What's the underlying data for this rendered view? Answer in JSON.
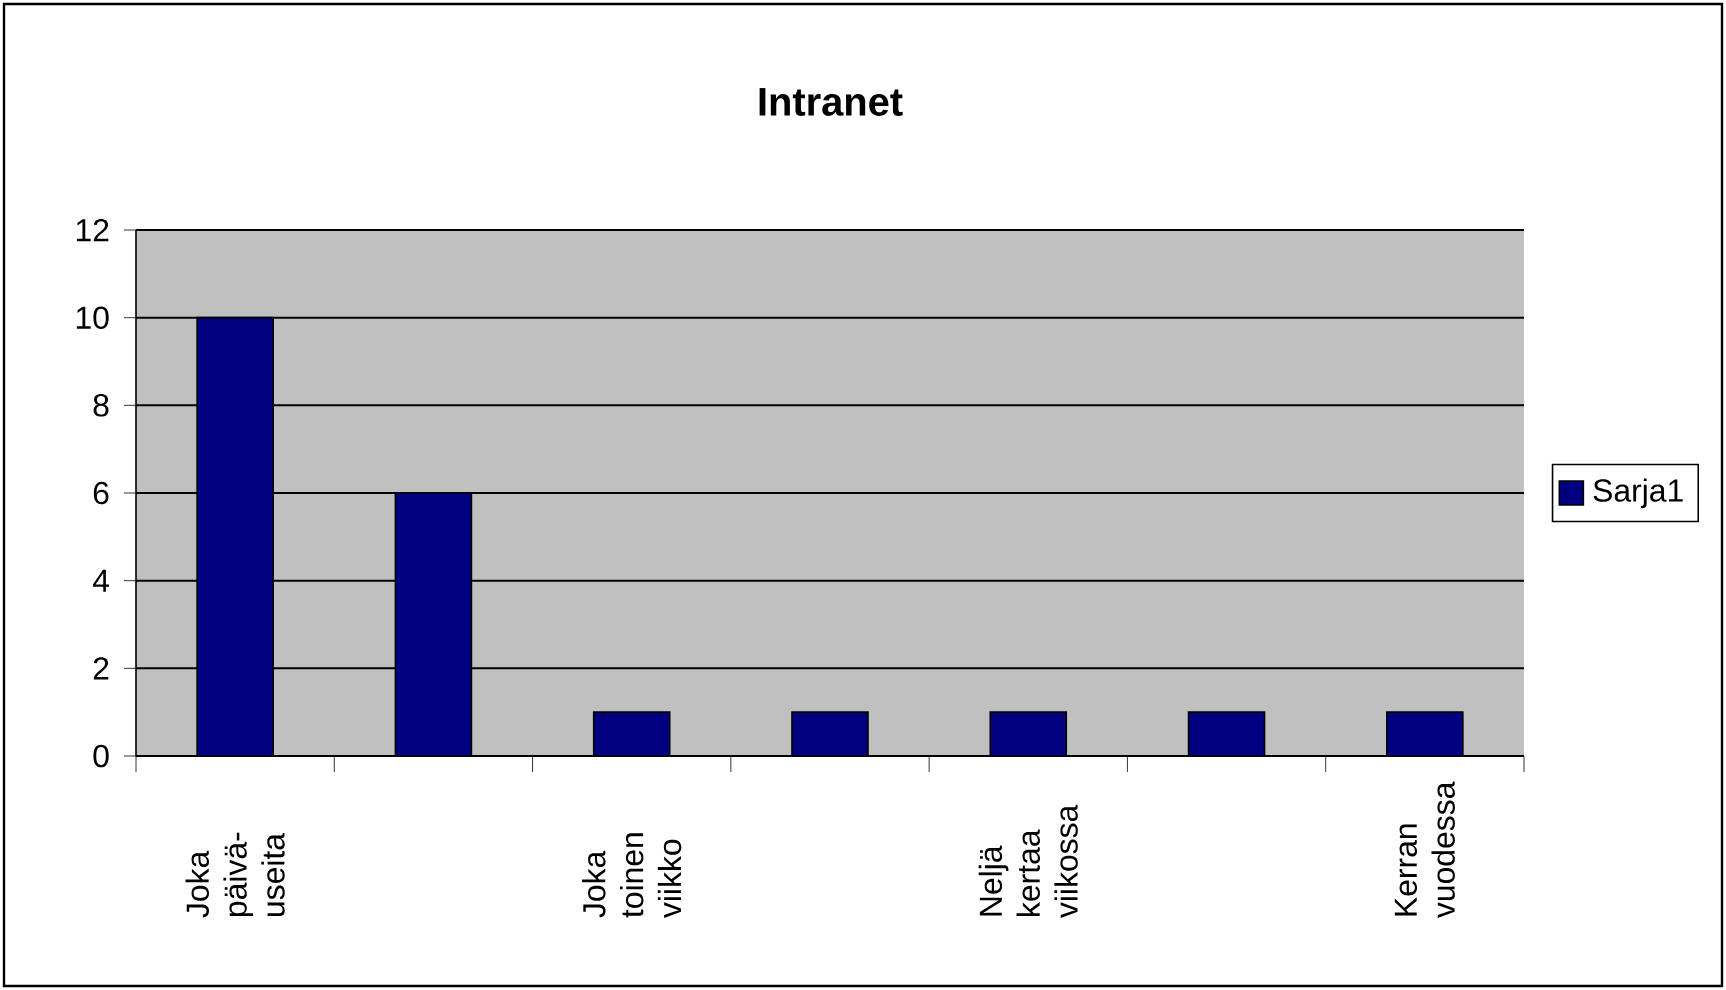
{
  "chart_data": {
    "type": "bar",
    "title": "Intranet",
    "categories": [
      "Joka päivä-useita",
      null,
      "Joka toinen viikko",
      null,
      "Neljä kertaa viikossa",
      null,
      "Kerran vuodessa"
    ],
    "series": [
      {
        "name": "Sarja1",
        "color": "#000080",
        "values": [
          10,
          6,
          1,
          1,
          1,
          1,
          1
        ]
      }
    ],
    "ylim": [
      0,
      12
    ],
    "yticks": [
      0,
      2,
      4,
      6,
      8,
      10,
      12
    ],
    "grid": "y",
    "legend": "right"
  }
}
